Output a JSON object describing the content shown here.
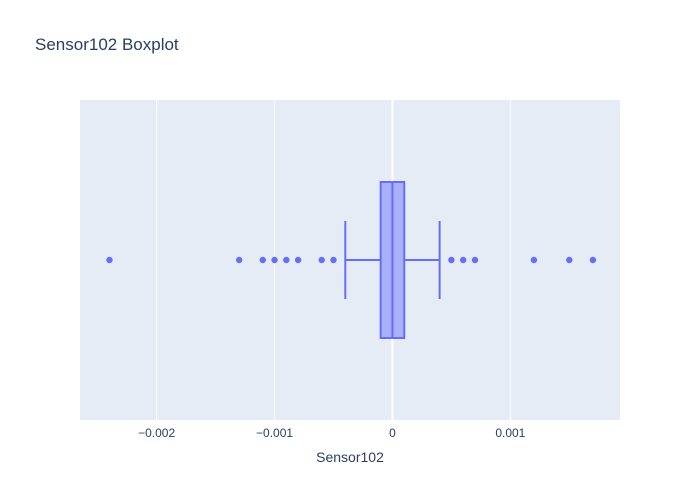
{
  "chart_data": {
    "type": "box",
    "title": "Sensor102 Boxplot",
    "xlabel": "Sensor102",
    "ylabel": "",
    "orientation": "horizontal",
    "xlim": [
      -0.00265,
      0.00193
    ],
    "x_ticks": [
      {
        "value": -0.002,
        "label": "−0.002"
      },
      {
        "value": -0.001,
        "label": "−0.001"
      },
      {
        "value": 0,
        "label": "0"
      },
      {
        "value": 0.001,
        "label": "0.001"
      }
    ],
    "grid": true,
    "box": {
      "lower_fence": -0.0004,
      "q1": -0.0001,
      "median": 0.0,
      "q3": 0.0001,
      "upper_fence": 0.0004
    },
    "outliers": [
      -0.0024,
      -0.0013,
      -0.0011,
      -0.001,
      -0.0009,
      -0.0008,
      -0.0006,
      -0.0005,
      0.0005,
      0.0006,
      0.0007,
      0.0012,
      0.0015,
      0.0017
    ],
    "colors": {
      "plot_background": "#e5ecf6",
      "grid": "#ffffff",
      "box_line": "#636efa",
      "box_fill": "#aab0fc",
      "text": "#2a3f5f"
    }
  }
}
